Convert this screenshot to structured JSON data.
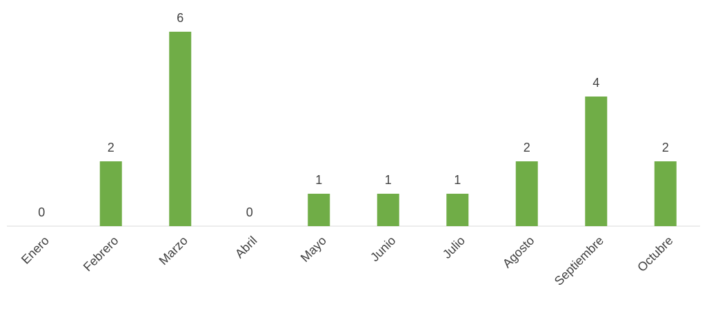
{
  "chart_data": {
    "type": "bar",
    "categories": [
      "Enero",
      "Febrero",
      "Marzo",
      "Abril",
      "Mayo",
      "Junio",
      "Julio",
      "Agosto",
      "Septiembre",
      "Octubre"
    ],
    "values": [
      0,
      2,
      6,
      0,
      1,
      1,
      1,
      2,
      4,
      2
    ],
    "color": "#70ad47"
  }
}
